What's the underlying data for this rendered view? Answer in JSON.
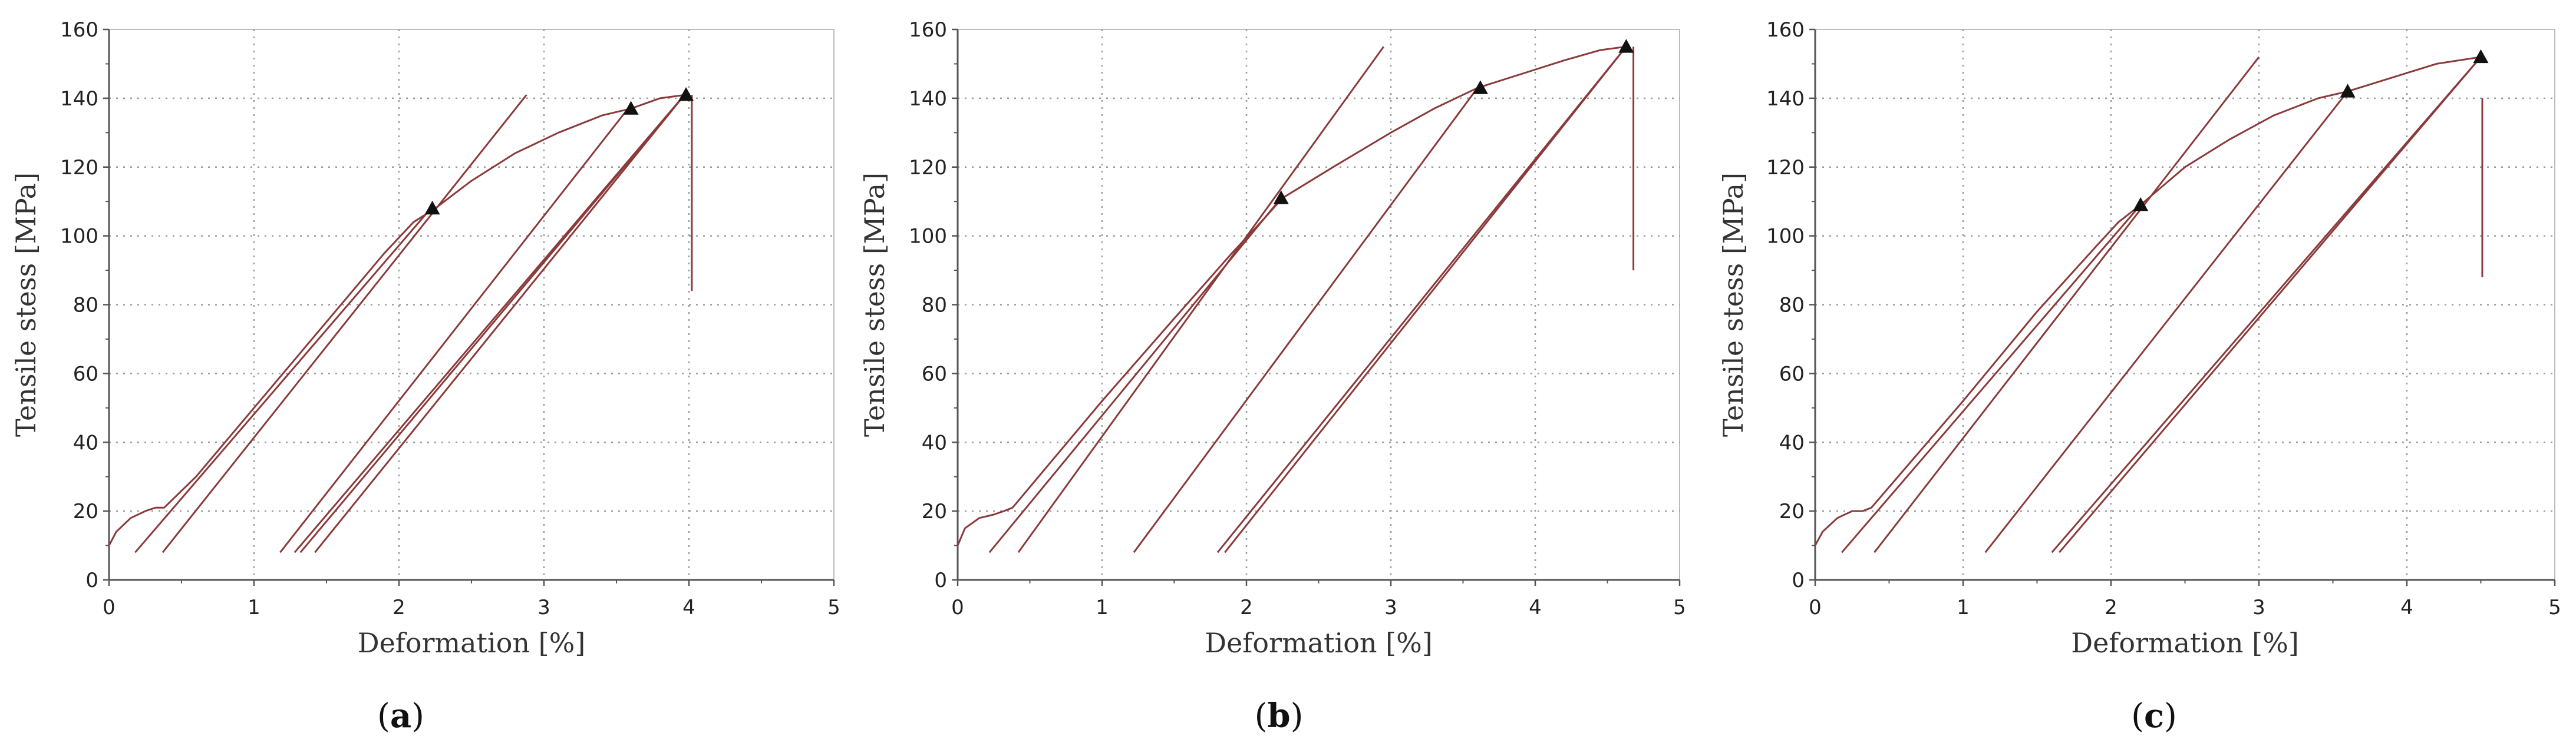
{
  "figure": {
    "background": "#ffffff",
    "frame_color": "#bdbdbd",
    "grid_color": "#9a9a9a",
    "axis_color": "#555555",
    "curve_color": "#8b3a3a",
    "marker_color": "#111111"
  },
  "chart_data": [
    {
      "type": "line",
      "panel_label": "a",
      "xlabel": "Deformation [%]",
      "ylabel": "Tensile stess [MPa]",
      "xlim": [
        0,
        5
      ],
      "ylim": [
        0,
        160
      ],
      "xticks": [
        "0",
        "1",
        "2",
        "3",
        "4",
        "5"
      ],
      "yticks": [
        "0",
        "20",
        "40",
        "60",
        "80",
        "100",
        "120",
        "140",
        "160"
      ],
      "grid": true,
      "legend": "none",
      "series": [
        {
          "role": "loading",
          "style": "solid",
          "x": [
            0.0,
            0.05,
            0.15,
            0.25,
            0.32,
            0.38,
            0.6,
            1.0,
            1.5,
            1.9,
            2.1,
            2.25,
            2.5,
            2.8,
            3.1,
            3.4,
            3.6,
            3.8,
            3.98
          ],
          "y": [
            10,
            14,
            18,
            20,
            21,
            21,
            30,
            50,
            75,
            95,
            104,
            108,
            116,
            124,
            130,
            135,
            137,
            140,
            141
          ]
        },
        {
          "role": "unloading",
          "style": "solid",
          "x": [
            2.22,
            0.18
          ],
          "y": [
            108,
            8
          ]
        },
        {
          "role": "reloading",
          "style": "solid",
          "x": [
            0.37,
            2.88
          ],
          "y": [
            8,
            141
          ]
        },
        {
          "role": "unloading",
          "style": "solid",
          "x": [
            3.58,
            1.18
          ],
          "y": [
            137,
            8
          ]
        },
        {
          "role": "reloading",
          "style": "solid",
          "x": [
            1.28,
            3.97
          ],
          "y": [
            8,
            141
          ]
        },
        {
          "role": "unloading",
          "style": "solid",
          "x": [
            3.97,
            1.32
          ],
          "y": [
            141,
            8
          ]
        },
        {
          "role": "reloading",
          "style": "solid",
          "x": [
            1.42,
            3.97
          ],
          "y": [
            8,
            141
          ]
        },
        {
          "role": "fracture",
          "style": "solid",
          "x": [
            4.02,
            4.02
          ],
          "y": [
            141,
            84
          ]
        }
      ],
      "markers": {
        "x": [
          2.23,
          3.6,
          3.98
        ],
        "y": [
          108,
          137,
          141
        ]
      }
    },
    {
      "type": "line",
      "panel_label": "b",
      "xlabel": "Deformation [%]",
      "ylabel": "Tensile stess [MPa]",
      "xlim": [
        0,
        5
      ],
      "ylim": [
        0,
        160
      ],
      "xticks": [
        "0",
        "1",
        "2",
        "3",
        "4",
        "5"
      ],
      "yticks": [
        "0",
        "20",
        "40",
        "60",
        "80",
        "100",
        "120",
        "140",
        "160"
      ],
      "grid": true,
      "legend": "none",
      "series": [
        {
          "role": "loading",
          "style": "solid",
          "x": [
            0.0,
            0.05,
            0.15,
            0.25,
            0.32,
            0.38,
            0.6,
            1.0,
            1.5,
            1.9,
            2.1,
            2.25,
            2.6,
            3.0,
            3.3,
            3.6,
            3.9,
            4.2,
            4.45,
            4.63
          ],
          "y": [
            10,
            15,
            18,
            19,
            20,
            21,
            32,
            52,
            76,
            95,
            104,
            111,
            120,
            130,
            137,
            143,
            147,
            151,
            154,
            155
          ]
        },
        {
          "role": "unloading",
          "style": "solid",
          "x": [
            2.24,
            0.22
          ],
          "y": [
            111,
            8
          ]
        },
        {
          "role": "reloading",
          "style": "solid",
          "x": [
            0.42,
            2.95
          ],
          "y": [
            8,
            155
          ]
        },
        {
          "role": "unloading",
          "style": "solid",
          "x": [
            3.6,
            1.22
          ],
          "y": [
            143,
            8
          ]
        },
        {
          "role": "reloading",
          "style": "solid",
          "x": [
            1.8,
            4.63
          ],
          "y": [
            8,
            155
          ]
        },
        {
          "role": "unloading",
          "style": "solid",
          "x": [
            4.63,
            1.85
          ],
          "y": [
            155,
            8
          ]
        },
        {
          "role": "fracture",
          "style": "solid",
          "x": [
            4.68,
            4.68
          ],
          "y": [
            155,
            90
          ]
        }
      ],
      "markers": {
        "x": [
          2.24,
          3.62,
          4.63
        ],
        "y": [
          111,
          143,
          155
        ]
      }
    },
    {
      "type": "line",
      "panel_label": "c",
      "xlabel": "Deformation [%]",
      "ylabel": "Tensile stess [MPa]",
      "xlim": [
        0,
        5
      ],
      "ylim": [
        0,
        160
      ],
      "xticks": [
        "0",
        "1",
        "2",
        "3",
        "4",
        "5"
      ],
      "yticks": [
        "0",
        "20",
        "40",
        "60",
        "80",
        "100",
        "120",
        "140",
        "160"
      ],
      "grid": true,
      "legend": "none",
      "series": [
        {
          "role": "loading",
          "style": "solid",
          "x": [
            0.0,
            0.05,
            0.15,
            0.25,
            0.32,
            0.38,
            0.6,
            1.0,
            1.5,
            1.9,
            2.05,
            2.2,
            2.5,
            2.8,
            3.1,
            3.4,
            3.6,
            3.9,
            4.2,
            4.5
          ],
          "y": [
            10,
            14,
            18,
            20,
            20,
            21,
            32,
            52,
            78,
            97,
            104,
            109,
            120,
            128,
            135,
            140,
            142,
            146,
            150,
            152
          ]
        },
        {
          "role": "unloading",
          "style": "solid",
          "x": [
            2.2,
            0.18
          ],
          "y": [
            109,
            8
          ]
        },
        {
          "role": "reloading",
          "style": "solid",
          "x": [
            0.4,
            3.0
          ],
          "y": [
            8,
            152
          ]
        },
        {
          "role": "unloading",
          "style": "solid",
          "x": [
            3.6,
            1.15
          ],
          "y": [
            142,
            8
          ]
        },
        {
          "role": "reloading",
          "style": "solid",
          "x": [
            1.6,
            4.5
          ],
          "y": [
            8,
            152
          ]
        },
        {
          "role": "unloading",
          "style": "solid",
          "x": [
            4.5,
            1.65
          ],
          "y": [
            152,
            8
          ]
        },
        {
          "role": "fracture",
          "style": "solid",
          "x": [
            4.51,
            4.51
          ],
          "y": [
            140,
            88
          ]
        }
      ],
      "markers": {
        "x": [
          2.2,
          3.6,
          4.5
        ],
        "y": [
          109,
          142,
          152
        ]
      }
    }
  ]
}
